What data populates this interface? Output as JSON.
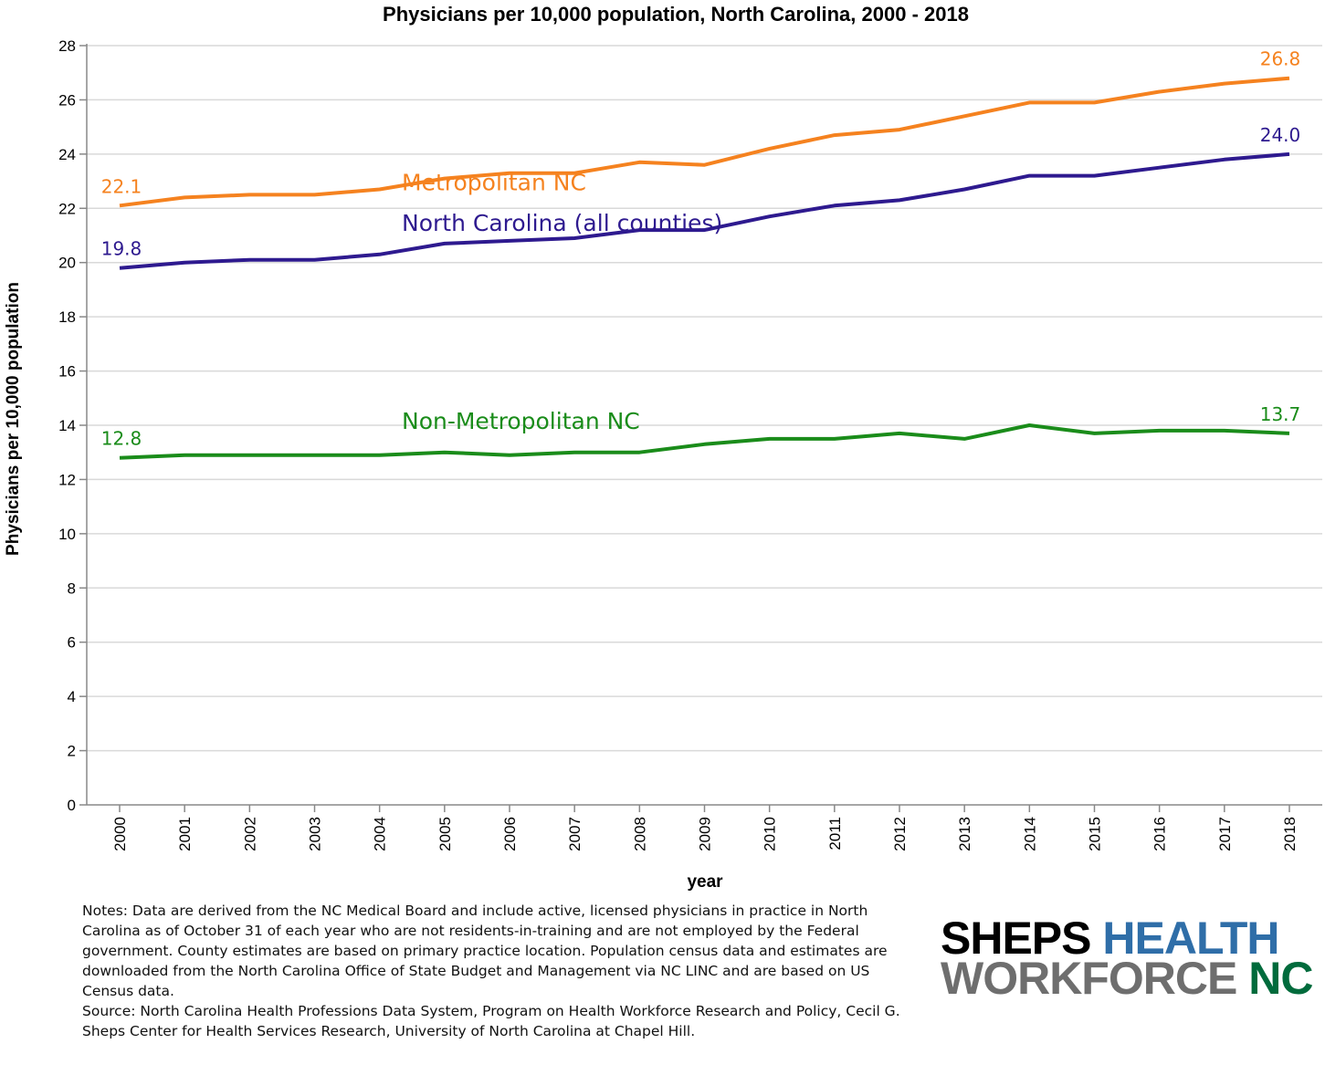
{
  "chart_data": {
    "type": "line",
    "title": "Physicians per 10,000 population, North Carolina, 2000 - 2018",
    "xlabel": "year",
    "ylabel": "Physicians per 10,000 population",
    "ylim": [
      0,
      28
    ],
    "yticks": [
      0,
      2,
      4,
      6,
      8,
      10,
      12,
      14,
      16,
      18,
      20,
      22,
      24,
      26,
      28
    ],
    "x": [
      "2000",
      "2001",
      "2002",
      "2003",
      "2004",
      "2005",
      "2006",
      "2007",
      "2008",
      "2009",
      "2010",
      "2011",
      "2012",
      "2013",
      "2014",
      "2015",
      "2016",
      "2017",
      "2018"
    ],
    "grid": "horizontal",
    "series": [
      {
        "name": "Metropolitan NC",
        "color": "#f5821f",
        "values": [
          22.1,
          22.4,
          22.5,
          22.5,
          22.7,
          23.1,
          23.3,
          23.3,
          23.7,
          23.6,
          24.2,
          24.7,
          24.9,
          25.4,
          25.9,
          25.9,
          26.3,
          26.6,
          26.8
        ],
        "start_label": "22.1",
        "end_label": "26.8"
      },
      {
        "name": "North Carolina (all counties)",
        "color": "#2e1a8f",
        "values": [
          19.8,
          20.0,
          20.1,
          20.1,
          20.3,
          20.7,
          20.8,
          20.9,
          21.2,
          21.2,
          21.7,
          22.1,
          22.3,
          22.7,
          23.2,
          23.2,
          23.5,
          23.8,
          24.0
        ],
        "start_label": "19.8",
        "end_label": "24.0"
      },
      {
        "name": "Non-Metropolitan NC",
        "color": "#1a8c1a",
        "values": [
          12.8,
          12.9,
          12.9,
          12.9,
          12.9,
          13.0,
          12.9,
          13.0,
          13.0,
          13.3,
          13.5,
          13.5,
          13.7,
          13.5,
          14.0,
          13.7,
          13.8,
          13.8,
          13.7
        ],
        "start_label": "12.8",
        "end_label": "13.7"
      }
    ]
  },
  "notes": {
    "text": "Notes: Data are derived from the NC Medical Board and include active, licensed physicians in practice in North Carolina as of October 31 of each year who are not residents-in-training and are not employed by the Federal government. County estimates are based on primary practice location. Population census data and estimates are downloaded from the North Carolina Office of State Budget and Management via NC LINC and are based on US Census data.",
    "source": "Source: North Carolina Health Professions Data System, Program on Health Workforce Research and Policy, Cecil G. Sheps Center for Health Services Research, University of North Carolina at Chapel Hill."
  },
  "logo": {
    "word1": "SHEPS",
    "word2": "HEALTH",
    "word3": "WORKFORCE",
    "word4": "NC"
  }
}
